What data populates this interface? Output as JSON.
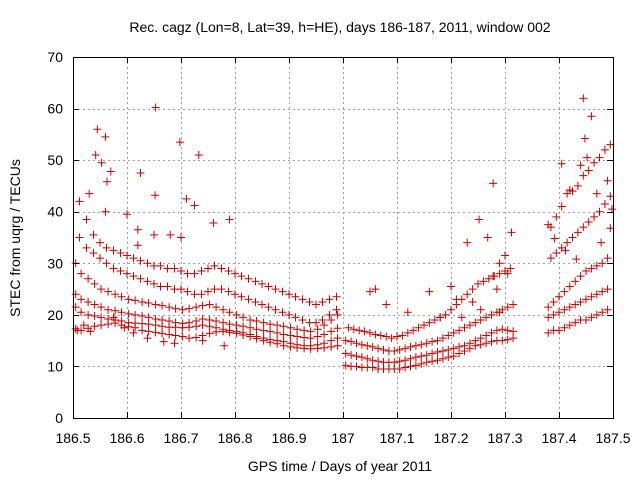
{
  "chart_data": {
    "type": "scatter",
    "title": "Rec. cagz (Lon=8, Lat=39, h=HE), days 186-187, 2011, window 002",
    "xlabel": "GPS time / Days of year 2011",
    "ylabel": "STEC from uqrg / TECUs",
    "xlim": [
      186.5,
      187.5
    ],
    "ylim": [
      0,
      70
    ],
    "xticks": [
      "186.5",
      "186.6",
      "186.7",
      "186.8",
      "186.9",
      "187",
      "187.1",
      "187.2",
      "187.3",
      "187.4",
      "187.5"
    ],
    "yticks": [
      "0",
      "10",
      "20",
      "30",
      "40",
      "50",
      "60",
      "70"
    ],
    "grid": true,
    "marker": "plus",
    "color": "#cc0000",
    "x": [
      186.505,
      186.515,
      186.528,
      186.54,
      186.552,
      186.565,
      186.578,
      186.59,
      186.603,
      186.615,
      186.628,
      186.64,
      186.653,
      186.665,
      186.678,
      186.69,
      186.703,
      186.715,
      186.728,
      186.74,
      186.753,
      186.765,
      186.778,
      186.79,
      186.803,
      186.815,
      186.828,
      186.84,
      186.853,
      186.865,
      186.878,
      186.89,
      186.903,
      186.915,
      186.928,
      186.94,
      186.953,
      186.965,
      186.978,
      186.99,
      186.505,
      186.515,
      186.528,
      186.54,
      186.552,
      186.565,
      186.578,
      186.59,
      186.603,
      186.615,
      186.628,
      186.64,
      186.653,
      186.665,
      186.678,
      186.69,
      186.703,
      186.715,
      186.728,
      186.74,
      186.753,
      186.765,
      186.778,
      186.79,
      186.803,
      186.815,
      186.828,
      186.84,
      186.853,
      186.865,
      186.878,
      186.89,
      186.903,
      186.915,
      186.928,
      186.94,
      186.953,
      186.965,
      186.978,
      186.99,
      186.505,
      186.515,
      186.528,
      186.54,
      186.552,
      186.565,
      186.578,
      186.59,
      186.603,
      186.615,
      186.628,
      186.64,
      186.653,
      186.665,
      186.678,
      186.69,
      186.703,
      186.715,
      186.728,
      186.74,
      186.753,
      186.765,
      186.778,
      186.79,
      186.803,
      186.815,
      186.828,
      186.84,
      186.853,
      186.865,
      186.878,
      186.89,
      186.903,
      186.915,
      186.928,
      186.94,
      186.953,
      186.965,
      186.978,
      186.99,
      186.505,
      186.515,
      186.528,
      186.54,
      186.552,
      186.565,
      186.578,
      186.59,
      186.603,
      186.615,
      186.628,
      186.64,
      186.653,
      186.665,
      186.678,
      186.69,
      186.703,
      186.715,
      186.728,
      186.74,
      186.753,
      186.765,
      186.778,
      186.79,
      186.803,
      186.815,
      186.828,
      186.84,
      186.853,
      186.865,
      186.878,
      186.89,
      186.903,
      186.915,
      186.928,
      186.94,
      186.953,
      186.965,
      186.978,
      186.99,
      186.512,
      186.525,
      186.538,
      186.55,
      186.562,
      186.575,
      186.588,
      186.6,
      186.612,
      186.625,
      186.638,
      186.65,
      186.662,
      186.675,
      186.688,
      186.7,
      186.712,
      186.725,
      186.738,
      186.75,
      186.762,
      186.775,
      186.788,
      186.8,
      186.812,
      186.825,
      186.838,
      186.85,
      186.862,
      186.875,
      186.888,
      186.9,
      186.912,
      186.925,
      186.938,
      186.95,
      186.962,
      186.975,
      186.988,
      186.512,
      186.525,
      186.538,
      186.55,
      186.562,
      186.575,
      186.588,
      186.6,
      186.612,
      186.625,
      186.638,
      186.65,
      186.662,
      186.675,
      186.688,
      186.7,
      186.712,
      186.725,
      186.738,
      186.75,
      186.762,
      186.775,
      186.788,
      186.8,
      186.812,
      186.825,
      186.838,
      186.85,
      186.862,
      186.875,
      186.888,
      186.9,
      186.912,
      186.925,
      186.938,
      186.95,
      186.962,
      186.975,
      186.988,
      186.545,
      186.542,
      186.56,
      186.563,
      186.553,
      186.653,
      186.652,
      186.698,
      186.733,
      186.71,
      186.625,
      186.725,
      186.76,
      186.79,
      186.508,
      186.52,
      186.532,
      186.575,
      186.595,
      186.612,
      186.638,
      186.668,
      186.688,
      186.74,
      186.78,
      186.56,
      186.6,
      186.62,
      186.68,
      186.7,
      186.62,
      186.65,
      186.57,
      186.53,
      187.005,
      187.015,
      187.025,
      187.035,
      187.045,
      187.055,
      187.065,
      187.075,
      187.085,
      187.095,
      187.105,
      187.115,
      187.125,
      187.135,
      187.145,
      187.155,
      187.165,
      187.175,
      187.185,
      187.195,
      187.205,
      187.215,
      187.225,
      187.235,
      187.245,
      187.255,
      187.265,
      187.275,
      187.285,
      187.295,
      187.305,
      187.315,
      187.005,
      187.015,
      187.025,
      187.035,
      187.045,
      187.055,
      187.065,
      187.075,
      187.085,
      187.095,
      187.105,
      187.115,
      187.125,
      187.135,
      187.145,
      187.155,
      187.165,
      187.175,
      187.185,
      187.195,
      187.205,
      187.215,
      187.225,
      187.235,
      187.245,
      187.255,
      187.265,
      187.275,
      187.285,
      187.295,
      187.305,
      187.315,
      187.005,
      187.015,
      187.025,
      187.035,
      187.045,
      187.055,
      187.065,
      187.075,
      187.085,
      187.095,
      187.105,
      187.115,
      187.125,
      187.135,
      187.145,
      187.155,
      187.165,
      187.175,
      187.185,
      187.195,
      187.205,
      187.215,
      187.225,
      187.235,
      187.245,
      187.255,
      187.265,
      187.275,
      187.285,
      187.295,
      187.305,
      187.315,
      187.01,
      187.02,
      187.03,
      187.04,
      187.05,
      187.06,
      187.07,
      187.08,
      187.09,
      187.1,
      187.11,
      187.12,
      187.13,
      187.14,
      187.15,
      187.16,
      187.17,
      187.18,
      187.19,
      187.2,
      187.21,
      187.22,
      187.23,
      187.24,
      187.25,
      187.26,
      187.27,
      187.28,
      187.29,
      187.3,
      187.31,
      187.23,
      187.252,
      187.268,
      187.278,
      187.29,
      187.3,
      187.312,
      187.285,
      187.305,
      187.24,
      187.255,
      187.2,
      187.22,
      187.05,
      187.06,
      187.08,
      187.12,
      187.16,
      187.18,
      187.21,
      187.29,
      187.278,
      187.38,
      187.39,
      187.4,
      187.41,
      187.42,
      187.43,
      187.44,
      187.45,
      187.46,
      187.47,
      187.48,
      187.49,
      187.38,
      187.39,
      187.4,
      187.41,
      187.42,
      187.43,
      187.44,
      187.45,
      187.46,
      187.47,
      187.48,
      187.49,
      187.38,
      187.39,
      187.4,
      187.41,
      187.42,
      187.43,
      187.44,
      187.45,
      187.46,
      187.47,
      187.48,
      187.49,
      187.385,
      187.395,
      187.405,
      187.415,
      187.425,
      187.435,
      187.445,
      187.455,
      187.465,
      187.475,
      187.485,
      187.495,
      187.385,
      187.395,
      187.405,
      187.415,
      187.425,
      187.435,
      187.445,
      187.455,
      187.465,
      187.475,
      187.485,
      187.495,
      187.445,
      187.448,
      187.46,
      187.452,
      187.44,
      187.405,
      187.42,
      187.47,
      187.49,
      187.498,
      187.38,
      187.392,
      187.412,
      187.432,
      187.478,
      187.495
    ],
    "y": [
      17.3,
      17.0,
      17.4,
      17.8,
      18.0,
      18.2,
      18.4,
      18.0,
      17.7,
      17.5,
      17.0,
      16.8,
      16.6,
      16.4,
      16.2,
      16.0,
      15.8,
      15.5,
      15.6,
      16.0,
      16.4,
      16.7,
      16.8,
      16.6,
      16.4,
      16.1,
      15.8,
      15.4,
      15.0,
      14.7,
      14.4,
      14.0,
      13.8,
      13.6,
      13.5,
      13.4,
      13.5,
      13.6,
      13.8,
      14.0,
      21.5,
      20.5,
      20.0,
      19.8,
      19.5,
      19.2,
      19.0,
      18.8,
      18.5,
      18.4,
      18.3,
      18.2,
      18.0,
      17.8,
      17.6,
      17.6,
      17.5,
      17.6,
      17.8,
      18.0,
      17.8,
      17.5,
      17.2,
      17.0,
      16.8,
      16.5,
      16.2,
      15.8,
      15.5,
      15.2,
      15.0,
      14.8,
      14.5,
      14.2,
      14.0,
      14.0,
      14.2,
      14.5,
      15.0,
      15.5,
      24.0,
      23.0,
      22.5,
      22.0,
      21.5,
      21.0,
      20.8,
      20.5,
      20.2,
      20.0,
      19.8,
      19.5,
      19.2,
      19.0,
      18.8,
      18.5,
      18.3,
      18.5,
      18.8,
      19.2,
      19.0,
      18.8,
      18.5,
      18.2,
      18.0,
      17.8,
      17.5,
      17.2,
      17.0,
      16.8,
      16.5,
      16.2,
      16.0,
      15.8,
      15.6,
      15.5,
      15.8,
      16.2,
      16.8,
      17.4,
      30.0,
      28.0,
      27.0,
      26.0,
      25.0,
      24.5,
      24.0,
      23.5,
      23.0,
      22.8,
      22.5,
      22.3,
      22.0,
      21.8,
      21.5,
      21.2,
      21.0,
      21.2,
      21.5,
      21.8,
      22.0,
      21.5,
      21.0,
      20.5,
      20.0,
      19.5,
      19.0,
      18.8,
      18.5,
      18.2,
      18.0,
      17.8,
      17.5,
      17.2,
      17.0,
      16.8,
      17.2,
      18.0,
      19.0,
      20.0,
      35.0,
      33.0,
      32.0,
      31.0,
      30.0,
      29.0,
      28.5,
      28.0,
      27.5,
      27.0,
      26.5,
      26.0,
      25.5,
      25.5,
      25.0,
      25.0,
      24.5,
      24.0,
      24.0,
      24.5,
      25.0,
      25.0,
      24.5,
      24.0,
      23.5,
      23.0,
      22.5,
      22.0,
      21.5,
      21.0,
      20.5,
      20.0,
      19.5,
      19.0,
      18.5,
      18.5,
      19.0,
      20.0,
      21.0,
      42.0,
      38.5,
      35.5,
      34.0,
      33.0,
      32.5,
      32.0,
      31.5,
      31.0,
      30.5,
      30.0,
      29.5,
      29.5,
      29.0,
      29.0,
      28.5,
      28.0,
      28.0,
      28.5,
      29.0,
      29.5,
      29.0,
      28.5,
      28.0,
      27.5,
      27.0,
      26.5,
      26.0,
      25.5,
      25.0,
      24.5,
      24.0,
      23.5,
      23.0,
      22.5,
      22.0,
      22.5,
      23.0,
      23.5,
      56.0,
      51.0,
      54.5,
      45.8,
      49.5,
      60.2,
      43.2,
      53.5,
      51.0,
      42.5,
      47.5,
      41.2,
      37.8,
      38.5,
      17.0,
      18.0,
      16.8,
      19.5,
      17.5,
      16.5,
      15.5,
      14.8,
      14.5,
      15.0,
      14.0,
      40.0,
      39.5,
      36.5,
      35.5,
      35.0,
      33.5,
      35.5,
      47.8,
      43.5,
      10.2,
      10.0,
      10.0,
      9.8,
      9.8,
      9.8,
      9.5,
      9.5,
      9.5,
      9.5,
      9.5,
      9.8,
      10.0,
      10.2,
      10.5,
      10.8,
      11.0,
      11.2,
      11.5,
      11.8,
      12.0,
      12.5,
      13.0,
      13.5,
      14.0,
      14.2,
      14.5,
      14.8,
      15.0,
      15.0,
      15.2,
      15.5,
      12.5,
      12.2,
      12.0,
      11.8,
      11.5,
      11.2,
      11.0,
      10.8,
      10.8,
      10.8,
      11.0,
      11.2,
      11.5,
      11.8,
      12.0,
      12.2,
      12.5,
      12.8,
      13.0,
      13.2,
      13.5,
      13.8,
      14.0,
      14.5,
      15.0,
      15.5,
      16.0,
      16.5,
      17.0,
      17.2,
      17.0,
      16.8,
      15.0,
      14.8,
      14.5,
      14.2,
      14.0,
      13.8,
      13.5,
      13.2,
      13.0,
      13.0,
      13.2,
      13.5,
      13.8,
      14.0,
      14.2,
      14.5,
      14.8,
      15.0,
      15.5,
      16.0,
      16.5,
      17.0,
      17.5,
      18.0,
      18.5,
      19.0,
      19.5,
      20.0,
      20.5,
      21.0,
      21.5,
      22.0,
      17.5,
      17.2,
      17.0,
      16.8,
      16.5,
      16.2,
      16.0,
      15.8,
      15.5,
      15.8,
      16.0,
      16.5,
      17.0,
      17.5,
      18.0,
      18.5,
      19.0,
      19.5,
      20.0,
      21.0,
      22.0,
      23.0,
      24.0,
      25.0,
      26.0,
      26.5,
      27.0,
      27.5,
      28.0,
      28.5,
      29.0,
      34.0,
      38.5,
      35.0,
      45.5,
      30.0,
      31.5,
      36.0,
      25.0,
      28.0,
      22.5,
      21.0,
      25.5,
      19.5,
      24.5,
      25.0,
      22.0,
      20.5,
      24.5,
      19.5,
      23.0,
      20.5,
      27.5,
      16.5,
      17.0,
      17.0,
      17.5,
      18.0,
      18.5,
      19.0,
      19.0,
      19.5,
      20.0,
      20.5,
      21.0,
      19.5,
      20.0,
      20.5,
      21.0,
      21.5,
      22.0,
      22.5,
      23.0,
      23.5,
      24.0,
      24.5,
      25.0,
      21.5,
      22.5,
      23.5,
      24.5,
      25.5,
      26.5,
      27.5,
      28.5,
      29.0,
      29.5,
      30.0,
      31.0,
      31.0,
      32.0,
      33.0,
      34.0,
      35.0,
      36.0,
      37.0,
      38.0,
      39.0,
      40.0,
      41.5,
      43.0,
      37.0,
      39.0,
      41.0,
      43.5,
      44.0,
      45.0,
      47.0,
      48.0,
      49.5,
      50.5,
      52.0,
      53.0,
      62.0,
      54.2,
      58.5,
      50.5,
      49.0,
      49.3,
      44.2,
      43.5,
      46.0,
      40.5,
      37.5,
      34.8,
      32.5,
      30.8,
      34.0,
      36.8
    ]
  }
}
